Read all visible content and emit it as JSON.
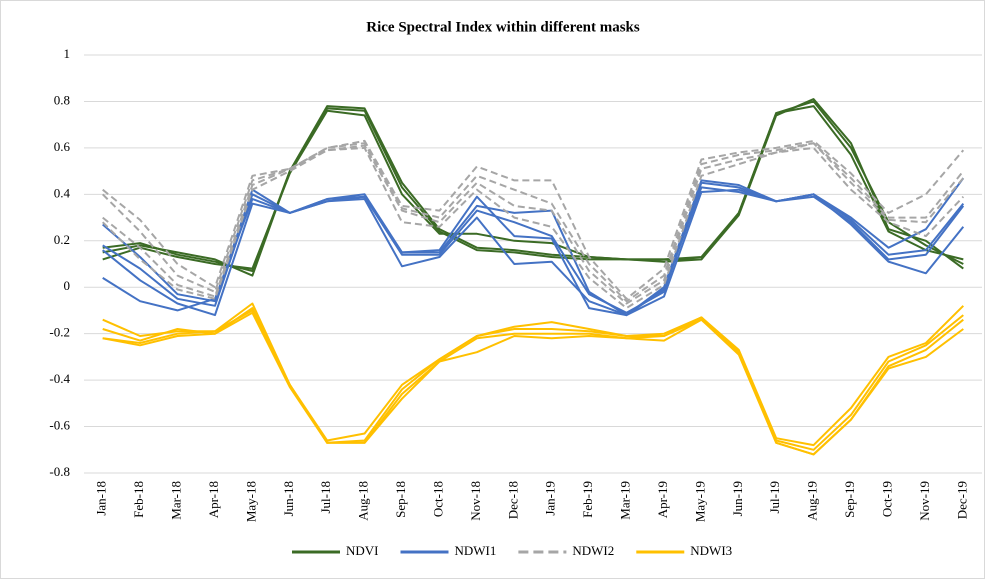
{
  "chart_data": {
    "type": "line",
    "title": "Rice Spectral Index within different masks",
    "categories": [
      "Jan-18",
      "Feb-18",
      "Mar-18",
      "Apr-18",
      "May-18",
      "Jun-18",
      "Jul-18",
      "Aug-18",
      "Sep-18",
      "Oct-18",
      "Nov-18",
      "Dec-18",
      "Jan-19",
      "Feb-19",
      "Mar-19",
      "Apr-19",
      "May-19",
      "Jun-19",
      "Jul-19",
      "Aug-19",
      "Sep-19",
      "Oct-19",
      "Nov-19",
      "Dec-19"
    ],
    "ylim": [
      -0.8,
      1
    ],
    "yticks": [
      1,
      0.8,
      0.6,
      0.4,
      0.2,
      0,
      -0.2,
      -0.4,
      -0.6,
      -0.8
    ],
    "grid": true,
    "legend": "bottom",
    "series": [
      {
        "name": "NDVI",
        "color": "#3b6b25",
        "dashed": false,
        "values": [
          [
            0.17,
            0.19,
            0.14,
            0.11,
            0.07,
            0.5,
            0.78,
            0.77,
            0.45,
            0.25,
            0.17,
            0.16,
            0.14,
            0.13,
            0.12,
            0.12,
            0.12,
            0.32,
            0.75,
            0.8,
            0.6,
            0.28,
            0.18,
            0.1
          ],
          [
            0.15,
            0.18,
            0.15,
            0.12,
            0.05,
            0.5,
            0.77,
            0.76,
            0.43,
            0.24,
            0.16,
            0.15,
            0.13,
            0.12,
            0.12,
            0.11,
            0.12,
            0.31,
            0.74,
            0.81,
            0.62,
            0.25,
            0.2,
            0.08
          ],
          [
            0.12,
            0.17,
            0.13,
            0.1,
            0.08,
            0.49,
            0.76,
            0.74,
            0.4,
            0.23,
            0.23,
            0.2,
            0.19,
            0.13,
            0.12,
            0.12,
            0.13,
            0.32,
            0.75,
            0.78,
            0.57,
            0.24,
            0.16,
            0.12
          ]
        ]
      },
      {
        "name": "NDWI1",
        "color": "#4472c4",
        "dashed": false,
        "values": [
          [
            0.27,
            0.13,
            -0.03,
            -0.06,
            0.42,
            0.32,
            0.38,
            0.4,
            0.15,
            0.15,
            0.35,
            0.32,
            0.33,
            -0.02,
            -0.12,
            0.0,
            0.46,
            0.44,
            0.37,
            0.4,
            0.3,
            0.17,
            0.25,
            0.47
          ],
          [
            0.18,
            0.08,
            -0.05,
            -0.08,
            0.4,
            0.32,
            0.37,
            0.39,
            0.14,
            0.14,
            0.33,
            0.28,
            0.22,
            -0.03,
            -0.11,
            -0.02,
            0.45,
            0.43,
            0.37,
            0.4,
            0.29,
            0.14,
            0.16,
            0.36
          ],
          [
            0.16,
            0.03,
            -0.07,
            -0.12,
            0.36,
            0.32,
            0.37,
            0.38,
            0.09,
            0.13,
            0.3,
            0.1,
            0.11,
            -0.06,
            -0.12,
            -0.04,
            0.41,
            0.42,
            0.37,
            0.39,
            0.28,
            0.12,
            0.14,
            0.35
          ],
          [
            0.04,
            -0.06,
            -0.1,
            -0.05,
            0.38,
            0.32,
            0.38,
            0.39,
            0.15,
            0.16,
            0.39,
            0.22,
            0.21,
            -0.09,
            -0.12,
            -0.01,
            0.43,
            0.41,
            0.37,
            0.4,
            0.27,
            0.11,
            0.06,
            0.26
          ]
        ]
      },
      {
        "name": "NDWI2",
        "color": "#a6a6a6",
        "dashed": true,
        "values": [
          [
            0.42,
            0.29,
            0.1,
            0.0,
            0.48,
            0.51,
            0.6,
            0.63,
            0.35,
            0.33,
            0.52,
            0.46,
            0.46,
            0.13,
            -0.05,
            0.08,
            0.55,
            0.58,
            0.6,
            0.63,
            0.49,
            0.32,
            0.4,
            0.59
          ],
          [
            0.4,
            0.24,
            0.05,
            -0.02,
            0.46,
            0.51,
            0.6,
            0.62,
            0.34,
            0.3,
            0.48,
            0.42,
            0.36,
            0.1,
            -0.06,
            0.05,
            0.53,
            0.57,
            0.59,
            0.62,
            0.47,
            0.3,
            0.3,
            0.5
          ],
          [
            0.3,
            0.17,
            0.01,
            -0.04,
            0.44,
            0.51,
            0.59,
            0.61,
            0.33,
            0.28,
            0.45,
            0.35,
            0.33,
            0.07,
            -0.07,
            0.03,
            0.51,
            0.55,
            0.58,
            0.62,
            0.45,
            0.29,
            0.28,
            0.47
          ],
          [
            0.28,
            0.12,
            -0.01,
            -0.05,
            0.42,
            0.5,
            0.59,
            0.6,
            0.28,
            0.26,
            0.42,
            0.3,
            0.26,
            0.04,
            -0.09,
            0.01,
            0.48,
            0.53,
            0.58,
            0.6,
            0.42,
            0.28,
            0.22,
            0.39
          ]
        ]
      },
      {
        "name": "NDWI3",
        "color": "#ffc000",
        "dashed": false,
        "values": [
          [
            -0.14,
            -0.21,
            -0.19,
            -0.19,
            -0.07,
            -0.42,
            -0.66,
            -0.63,
            -0.42,
            -0.31,
            -0.21,
            -0.17,
            -0.15,
            -0.18,
            -0.21,
            -0.2,
            -0.13,
            -0.27,
            -0.65,
            -0.68,
            -0.52,
            -0.3,
            -0.24,
            -0.08
          ],
          [
            -0.18,
            -0.23,
            -0.18,
            -0.2,
            -0.09,
            -0.42,
            -0.67,
            -0.66,
            -0.44,
            -0.31,
            -0.21,
            -0.18,
            -0.18,
            -0.19,
            -0.21,
            -0.21,
            -0.13,
            -0.28,
            -0.66,
            -0.7,
            -0.55,
            -0.32,
            -0.25,
            -0.12
          ],
          [
            -0.22,
            -0.24,
            -0.2,
            -0.19,
            -0.1,
            -0.42,
            -0.67,
            -0.67,
            -0.46,
            -0.32,
            -0.22,
            -0.2,
            -0.2,
            -0.2,
            -0.22,
            -0.21,
            -0.14,
            -0.28,
            -0.67,
            -0.72,
            -0.57,
            -0.34,
            -0.27,
            -0.14
          ],
          [
            -0.22,
            -0.25,
            -0.21,
            -0.2,
            -0.11,
            -0.43,
            -0.67,
            -0.67,
            -0.48,
            -0.32,
            -0.28,
            -0.21,
            -0.22,
            -0.21,
            -0.22,
            -0.23,
            -0.14,
            -0.29,
            -0.67,
            -0.72,
            -0.57,
            -0.35,
            -0.3,
            -0.18
          ]
        ]
      }
    ]
  }
}
